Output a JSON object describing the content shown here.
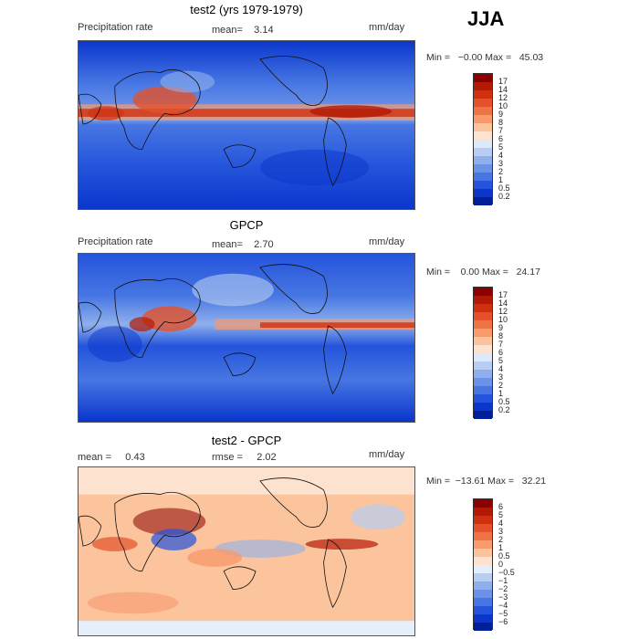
{
  "season": "JJA",
  "panels": [
    {
      "title": "test2 (yrs 1979-1979)",
      "left": "Precipitation rate",
      "center": "mean=    3.14",
      "units": "mm/day",
      "minmax": "Min =   −0.00 Max =   45.03",
      "colorbar_labels": [
        "17",
        "14",
        "12",
        "10",
        "9",
        "8",
        "7",
        "6",
        "5",
        "4",
        "3",
        "2",
        "1",
        "0.5",
        "0.2"
      ],
      "colors": [
        "#8b0000",
        "#b31a05",
        "#d1300f",
        "#e4512a",
        "#ef7445",
        "#f89a6c",
        "#fbc49d",
        "#fde3cf",
        "#dde9f8",
        "#b7cdf2",
        "#8fb0ec",
        "#6a92e8",
        "#4776e3",
        "#2454db",
        "#0a36cc",
        "#00209a"
      ]
    },
    {
      "title": "GPCP",
      "left": "Precipitation rate",
      "center": "mean=    2.70",
      "units": "mm/day",
      "minmax": "Min =    0.00 Max =   24.17",
      "colorbar_labels": [
        "17",
        "14",
        "12",
        "10",
        "9",
        "8",
        "7",
        "6",
        "5",
        "4",
        "3",
        "2",
        "1",
        "0.5",
        "0.2"
      ],
      "colors": [
        "#8b0000",
        "#b31a05",
        "#d1300f",
        "#e4512a",
        "#ef7445",
        "#f89a6c",
        "#fbc49d",
        "#fde3cf",
        "#dde9f8",
        "#b7cdf2",
        "#8fb0ec",
        "#6a92e8",
        "#4776e3",
        "#2454db",
        "#0a36cc",
        "#00209a"
      ]
    },
    {
      "title": "test2 - GPCP",
      "left": "mean =     0.43",
      "center": "rmse =     2.02",
      "units": "mm/day",
      "minmax": "Min =  −13.61 Max =   32.21",
      "colorbar_labels": [
        "6",
        "5",
        "4",
        "3",
        "2",
        "1",
        "0.5",
        "0",
        "−0.5",
        "−1",
        "−2",
        "−3",
        "−4",
        "−5",
        "−6"
      ],
      "colors": [
        "#8b0000",
        "#b31a05",
        "#d1300f",
        "#e4512a",
        "#ef7445",
        "#f89a6c",
        "#fbc49d",
        "#fde3cf",
        "#e6eefa",
        "#b7cdf2",
        "#8fb0ec",
        "#6a92e8",
        "#4776e3",
        "#2454db",
        "#0a36cc",
        "#00209a"
      ]
    }
  ]
}
